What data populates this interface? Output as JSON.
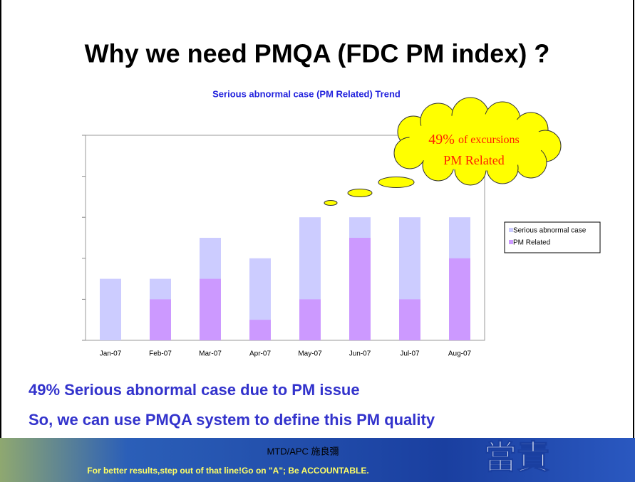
{
  "title": "Why we need PMQA (FDC PM index) ?",
  "chart_data": {
    "type": "bar",
    "barmode": "overlay",
    "title": "Serious abnormal case (PM Related) Trend",
    "categories": [
      "Jan-07",
      "Feb-07",
      "Mar-07",
      "Apr-07",
      "May-07",
      "Jun-07",
      "Jul-07",
      "Aug-07"
    ],
    "series": [
      {
        "name": "Serious abnormal case",
        "color": "#ccccff",
        "values": [
          3,
          3,
          5,
          4,
          6,
          6,
          6,
          6
        ]
      },
      {
        "name": "PM Related",
        "color": "#cc99ff",
        "values": [
          0,
          2,
          3,
          1,
          2,
          5,
          2,
          4
        ]
      }
    ],
    "ylim": [
      0,
      10
    ],
    "yticks": [
      0,
      2,
      4,
      6,
      8,
      10
    ],
    "legend": "right",
    "annotation": [
      "49%",
      "of excursions",
      "PM Related"
    ]
  },
  "bullets": [
    "49% Serious abnormal case due to PM issue",
    "So, we can use PMQA system to define this PM quality"
  ],
  "footer": {
    "slogan": "For better results,step out of that line!Go on \"A\"; Be ACCOUNTABLE.",
    "author": "MTD/APC 施良彌",
    "motto": "當責"
  }
}
